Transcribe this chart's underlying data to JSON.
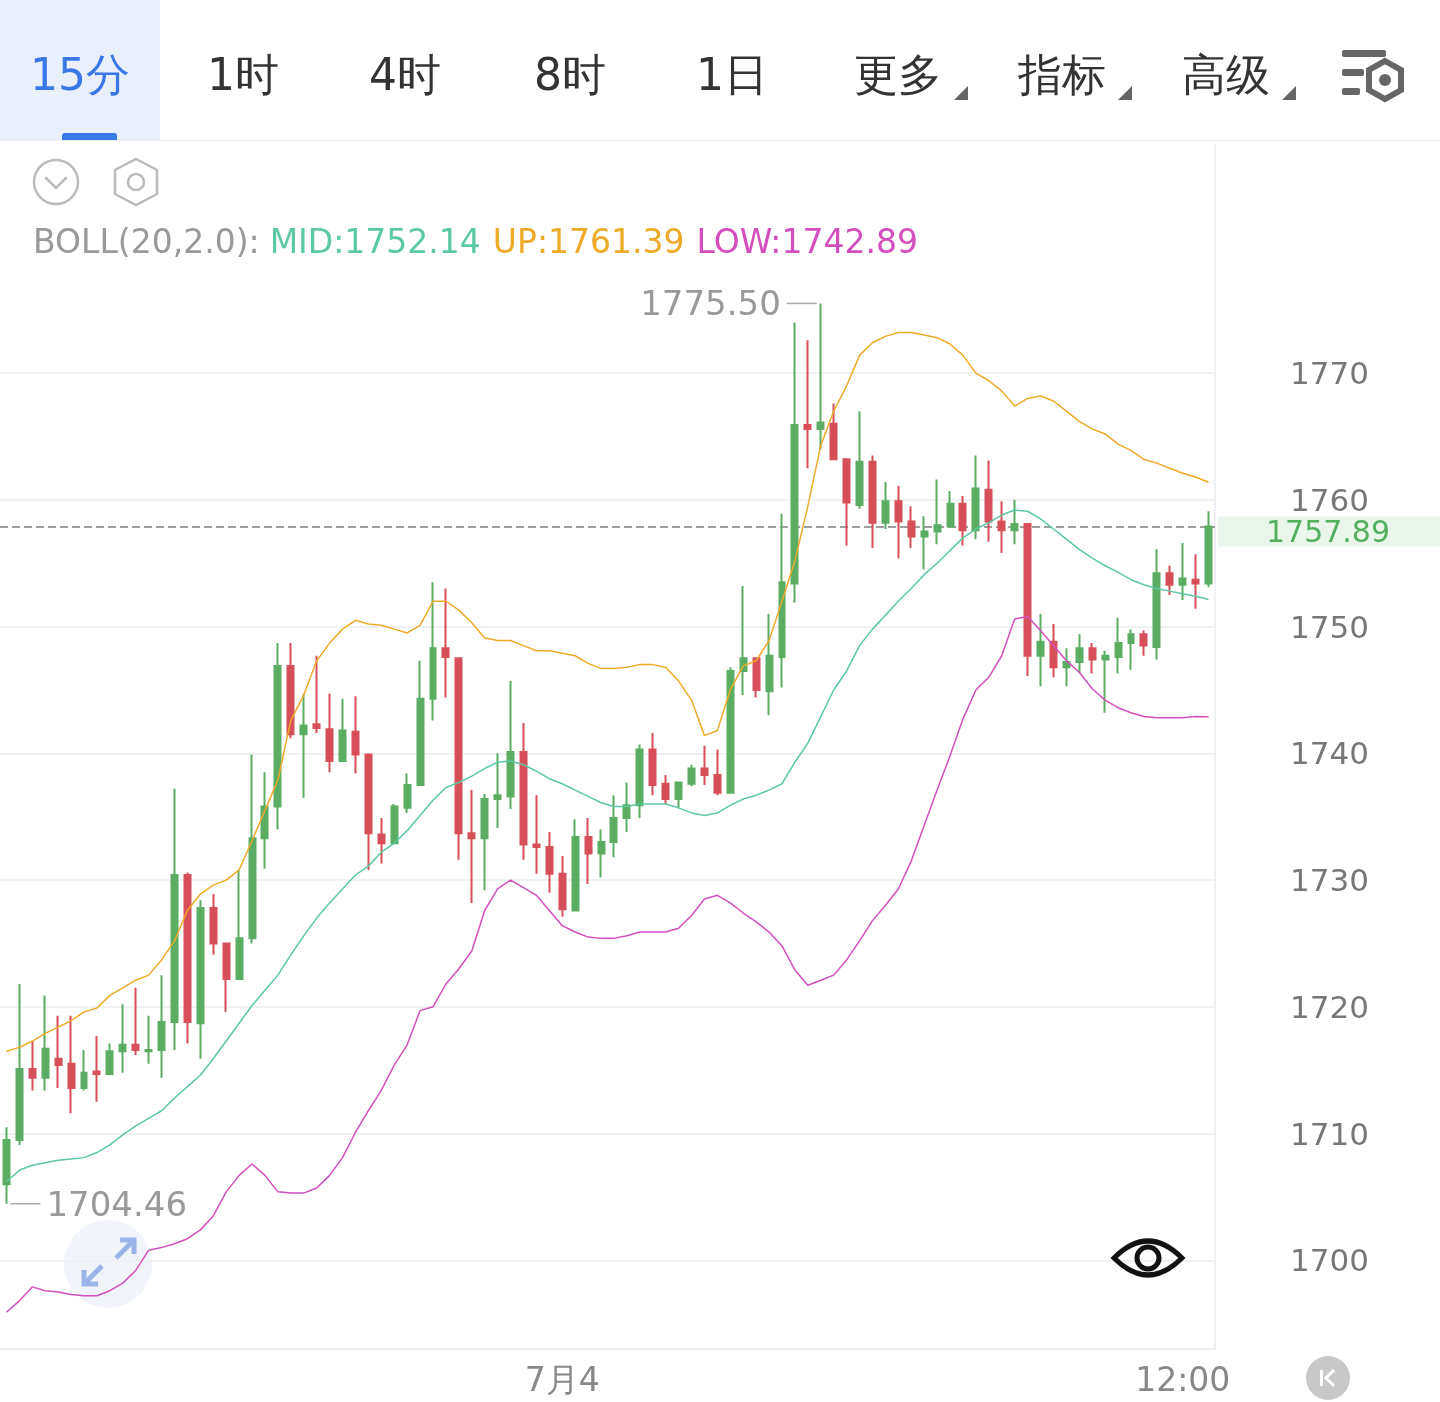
{
  "chart_data": {
    "type": "candlestick",
    "annotations": [
      "15分",
      "1时",
      "4时",
      "8时",
      "1日",
      "更多",
      "指标",
      "高级",
      "1775.50",
      "1704.46"
    ],
    "legend_title": "BOLL(20,2.0):",
    "legend": "top",
    "grid": "y",
    "marker": "none",
    "categories": [
      null,
      null,
      null,
      null,
      null,
      null,
      null,
      null,
      null,
      null,
      null,
      null,
      null,
      null,
      null,
      null,
      null,
      null,
      null,
      null,
      null,
      null,
      null,
      null,
      null,
      null,
      null,
      null,
      null,
      null,
      null,
      null,
      null,
      null,
      null,
      null,
      null,
      null,
      null,
      null,
      null,
      null,
      null,
      "7月4",
      null,
      null,
      null,
      null,
      null,
      null,
      null,
      null,
      null,
      null,
      null,
      null,
      null,
      null,
      null,
      null,
      null,
      null,
      null,
      null,
      null,
      null,
      null,
      null,
      null,
      null,
      null,
      null,
      null,
      null,
      null,
      null,
      null,
      null,
      null,
      null,
      null,
      null,
      null,
      null,
      null,
      null,
      null,
      null,
      null,
      null,
      null,
      "12:00",
      null,
      null
    ],
    "ohlc": [
      [
        1706.0,
        1710.5,
        1704.46,
        1709.5
      ],
      [
        1709.5,
        1721.8,
        1709.1,
        1715.1
      ],
      [
        1715.1,
        1717.3,
        1713.4,
        1714.4
      ],
      [
        1714.4,
        1720.9,
        1713.4,
        1716.7
      ],
      [
        1715.9,
        1719.3,
        1713.6,
        1715.4
      ],
      [
        1715.5,
        1719.3,
        1711.6,
        1713.6
      ],
      [
        1713.6,
        1716.6,
        1713.4,
        1714.8
      ],
      [
        1714.9,
        1717.7,
        1712.5,
        1714.7
      ],
      [
        1714.7,
        1717.1,
        1714.6,
        1716.5
      ],
      [
        1716.5,
        1720.2,
        1714.8,
        1717.0
      ],
      [
        1717.0,
        1721.5,
        1716.2,
        1716.6
      ],
      [
        1716.5,
        1719.3,
        1715.5,
        1716.6
      ],
      [
        1716.6,
        1722.5,
        1714.4,
        1718.8
      ],
      [
        1718.8,
        1737.2,
        1716.6,
        1730.4
      ],
      [
        1730.4,
        1730.6,
        1717.1,
        1718.8
      ],
      [
        1718.7,
        1728.4,
        1715.9,
        1727.8
      ],
      [
        1727.8,
        1728.9,
        1724.1,
        1725.0
      ],
      [
        1725.0,
        1725.0,
        1719.6,
        1722.2
      ],
      [
        1722.2,
        1730.8,
        1722.2,
        1725.4
      ],
      [
        1725.4,
        1739.9,
        1725.0,
        1733.3
      ],
      [
        1733.3,
        1738.5,
        1730.9,
        1735.8
      ],
      [
        1735.8,
        1748.7,
        1734.0,
        1746.9
      ],
      [
        1746.9,
        1748.7,
        1741.2,
        1741.5
      ],
      [
        1741.5,
        1744.7,
        1736.5,
        1742.2
      ],
      [
        1742.3,
        1747.7,
        1741.6,
        1742.0
      ],
      [
        1741.9,
        1744.7,
        1738.5,
        1739.4
      ],
      [
        1739.4,
        1744.3,
        1739.4,
        1741.8
      ],
      [
        1741.7,
        1744.5,
        1738.4,
        1739.9
      ],
      [
        1739.9,
        1739.9,
        1730.8,
        1733.7
      ],
      [
        1733.6,
        1734.9,
        1731.3,
        1732.9
      ],
      [
        1732.9,
        1736.0,
        1732.9,
        1735.8
      ],
      [
        1735.7,
        1738.4,
        1735.3,
        1737.5
      ],
      [
        1737.5,
        1747.3,
        1737.5,
        1744.3
      ],
      [
        1744.3,
        1753.5,
        1742.6,
        1748.3
      ],
      [
        1748.3,
        1753.0,
        1744.4,
        1747.6
      ],
      [
        1747.5,
        1747.5,
        1731.6,
        1733.7
      ],
      [
        1733.7,
        1737.1,
        1728.2,
        1733.3
      ],
      [
        1733.3,
        1736.8,
        1729.2,
        1736.4
      ],
      [
        1736.4,
        1740.0,
        1734.1,
        1736.7
      ],
      [
        1736.6,
        1745.7,
        1735.6,
        1740.1
      ],
      [
        1740.1,
        1742.4,
        1731.6,
        1732.8
      ],
      [
        1732.8,
        1736.7,
        1730.5,
        1732.6
      ],
      [
        1732.6,
        1733.8,
        1729.0,
        1730.5
      ],
      [
        1730.5,
        1731.9,
        1727.1,
        1727.7
      ],
      [
        1727.6,
        1734.8,
        1727.6,
        1733.4
      ],
      [
        1733.4,
        1734.9,
        1729.7,
        1732.1
      ],
      [
        1732.1,
        1734.0,
        1730.2,
        1733.0
      ],
      [
        1733.0,
        1736.7,
        1731.8,
        1734.9
      ],
      [
        1734.9,
        1737.7,
        1733.8,
        1735.9
      ],
      [
        1735.9,
        1740.7,
        1734.9,
        1740.3
      ],
      [
        1740.3,
        1741.6,
        1736.7,
        1737.5
      ],
      [
        1737.6,
        1738.3,
        1736.0,
        1736.4
      ],
      [
        1736.4,
        1737.7,
        1735.7,
        1737.7
      ],
      [
        1737.6,
        1739.1,
        1737.4,
        1738.8
      ],
      [
        1738.8,
        1740.6,
        1737.5,
        1738.3
      ],
      [
        1738.3,
        1740.3,
        1736.7,
        1736.9
      ],
      [
        1736.9,
        1746.8,
        1736.9,
        1746.5
      ],
      [
        1746.5,
        1753.2,
        1744.6,
        1747.5
      ],
      [
        1747.5,
        1747.5,
        1744.4,
        1745.0
      ],
      [
        1744.9,
        1751.0,
        1743.0,
        1747.7
      ],
      [
        1747.6,
        1758.9,
        1745.2,
        1753.5
      ],
      [
        1753.4,
        1774.0,
        1751.9,
        1765.9
      ],
      [
        1765.9,
        1772.6,
        1762.5,
        1765.6
      ],
      [
        1765.6,
        1775.5,
        1764.0,
        1766.1
      ],
      [
        1766.0,
        1767.6,
        1763.2,
        1763.2
      ],
      [
        1763.2,
        1763.2,
        1756.4,
        1759.8
      ],
      [
        1759.6,
        1767.0,
        1759.3,
        1763.0
      ],
      [
        1763.0,
        1763.5,
        1756.2,
        1758.2
      ],
      [
        1758.2,
        1761.4,
        1757.7,
        1759.9
      ],
      [
        1759.9,
        1761.1,
        1755.4,
        1758.3
      ],
      [
        1758.3,
        1759.5,
        1756.2,
        1757.1
      ],
      [
        1757.1,
        1758.7,
        1754.5,
        1757.5
      ],
      [
        1757.5,
        1761.6,
        1756.5,
        1758.0
      ],
      [
        1757.9,
        1760.7,
        1757.9,
        1759.7
      ],
      [
        1759.7,
        1760.3,
        1756.4,
        1757.6
      ],
      [
        1757.6,
        1763.5,
        1756.9,
        1760.9
      ],
      [
        1760.8,
        1763.1,
        1756.7,
        1758.3
      ],
      [
        1758.3,
        1759.9,
        1755.8,
        1757.6
      ],
      [
        1757.6,
        1760.0,
        1756.5,
        1758.1
      ],
      [
        1758.1,
        1758.1,
        1746.1,
        1747.7
      ],
      [
        1747.7,
        1751.0,
        1745.3,
        1748.8
      ],
      [
        1748.8,
        1750.2,
        1746.0,
        1746.8
      ],
      [
        1746.8,
        1748.3,
        1745.3,
        1747.2
      ],
      [
        1747.2,
        1749.4,
        1746.3,
        1748.3
      ],
      [
        1748.3,
        1748.7,
        1746.3,
        1747.4
      ],
      [
        1747.4,
        1748.1,
        1743.2,
        1747.7
      ],
      [
        1747.6,
        1750.7,
        1746.3,
        1748.7
      ],
      [
        1748.7,
        1749.8,
        1746.6,
        1749.4
      ],
      [
        1749.4,
        1749.7,
        1747.7,
        1748.5
      ],
      [
        1748.4,
        1756.1,
        1747.4,
        1754.2
      ],
      [
        1754.2,
        1754.8,
        1752.5,
        1753.3
      ],
      [
        1753.3,
        1756.6,
        1752.1,
        1753.8
      ],
      [
        1753.7,
        1755.7,
        1751.4,
        1753.4
      ],
      [
        1753.4,
        1759.1,
        1753.1,
        1757.89
      ]
    ],
    "colors": [
      "#5aad62",
      "#5aad62",
      "#d74f58",
      "#5aad62",
      "#d74f58",
      "#d74f58",
      "#5aad62",
      "#d74f58",
      "#5aad62",
      "#5aad62",
      "#d74f58",
      "#5aad62",
      "#5aad62",
      "#5aad62",
      "#d74f58",
      "#5aad62",
      "#d74f58",
      "#d74f58",
      "#5aad62",
      "#5aad62",
      "#5aad62",
      "#5aad62",
      "#d74f58",
      "#5aad62",
      "#d74f58",
      "#d74f58",
      "#5aad62",
      "#d74f58",
      "#d74f58",
      "#d74f58",
      "#5aad62",
      "#5aad62",
      "#5aad62",
      "#5aad62",
      "#d74f58",
      "#d74f58",
      "#d74f58",
      "#5aad62",
      "#5aad62",
      "#5aad62",
      "#d74f58",
      "#d74f58",
      "#d74f58",
      "#d74f58",
      "#5aad62",
      "#d74f58",
      "#5aad62",
      "#5aad62",
      "#5aad62",
      "#5aad62",
      "#d74f58",
      "#d74f58",
      "#5aad62",
      "#5aad62",
      "#d74f58",
      "#d74f58",
      "#5aad62",
      "#5aad62",
      "#d74f58",
      "#5aad62",
      "#5aad62",
      "#5aad62",
      "#d74f58",
      "#5aad62",
      "#d74f58",
      "#d74f58",
      "#5aad62",
      "#d74f58",
      "#5aad62",
      "#d74f58",
      "#d74f58",
      "#5aad62",
      "#5aad62",
      "#5aad62",
      "#d74f58",
      "#5aad62",
      "#d74f58",
      "#d74f58",
      "#5aad62",
      "#d74f58",
      "#5aad62",
      "#d74f58",
      "#5aad62",
      "#5aad62",
      "#d74f58",
      "#5aad62",
      "#5aad62",
      "#5aad62",
      "#d74f58",
      "#5aad62",
      "#d74f58",
      "#5aad62",
      "#d74f58",
      "#5aad62"
    ],
    "series": [
      {
        "type": "line",
        "name": "MID:1752.14",
        "color": "#5cc8a6",
        "values": [
          1706.2,
          1707.1,
          1707.5,
          1707.7,
          1707.9,
          1708.0,
          1708.1,
          1708.5,
          1709.1,
          1709.9,
          1710.6,
          1711.2,
          1711.8,
          1712.8,
          1713.7,
          1714.6,
          1715.9,
          1717.3,
          1718.7,
          1720.1,
          1721.3,
          1722.5,
          1724.1,
          1725.6,
          1727.0,
          1728.2,
          1729.3,
          1730.4,
          1731.1,
          1732.2,
          1732.9,
          1733.9,
          1735.1,
          1736.3,
          1737.3,
          1737.7,
          1738.2,
          1738.8,
          1739.3,
          1739.4,
          1739.1,
          1738.6,
          1738.0,
          1737.6,
          1737.1,
          1736.6,
          1736.1,
          1735.8,
          1735.8,
          1736.0,
          1736.0,
          1736.0,
          1735.7,
          1735.3,
          1735.1,
          1735.3,
          1735.9,
          1736.4,
          1736.7,
          1737.1,
          1737.6,
          1739.3,
          1740.8,
          1742.9,
          1745.0,
          1746.5,
          1748.5,
          1749.8,
          1750.9,
          1752.0,
          1753.0,
          1754.1,
          1755.0,
          1756.0,
          1757.0,
          1757.7,
          1758.2,
          1758.8,
          1759.2,
          1759.1,
          1758.5,
          1757.7,
          1756.9,
          1756.1,
          1755.4,
          1754.8,
          1754.3,
          1753.7,
          1753.3,
          1753.0,
          1752.8,
          1752.6,
          1752.4,
          1752.14
        ]
      },
      {
        "type": "line",
        "name": "UP:1761.39",
        "color": "#efaa2a",
        "values": [
          1716.5,
          1716.8,
          1717.3,
          1717.9,
          1718.4,
          1718.9,
          1719.6,
          1719.9,
          1720.9,
          1721.5,
          1722.1,
          1722.5,
          1723.7,
          1725.2,
          1727.6,
          1728.9,
          1729.6,
          1730.0,
          1730.8,
          1733.1,
          1735.5,
          1737.9,
          1742.6,
          1744.6,
          1747.3,
          1748.7,
          1749.8,
          1750.5,
          1750.2,
          1750.1,
          1749.8,
          1749.5,
          1750.1,
          1752.0,
          1752.0,
          1751.3,
          1750.3,
          1749.1,
          1748.9,
          1748.9,
          1748.5,
          1748.1,
          1748.1,
          1747.9,
          1747.7,
          1747.1,
          1746.7,
          1746.7,
          1746.8,
          1747.0,
          1747.0,
          1746.8,
          1745.7,
          1744.2,
          1741.4,
          1741.8,
          1745.0,
          1746.9,
          1747.3,
          1748.9,
          1752.0,
          1755.2,
          1759.5,
          1764.3,
          1767.0,
          1769.0,
          1771.4,
          1772.4,
          1772.9,
          1773.2,
          1773.2,
          1773.0,
          1772.8,
          1772.3,
          1771.4,
          1770.0,
          1769.4,
          1768.6,
          1767.4,
          1768.0,
          1768.2,
          1767.8,
          1767.0,
          1766.2,
          1765.6,
          1765.2,
          1764.4,
          1763.9,
          1763.2,
          1762.9,
          1762.5,
          1762.1,
          1761.8,
          1761.39
        ]
      },
      {
        "type": "line",
        "name": "LOW:1742.89",
        "color": "#d34fbe",
        "values": [
          1695.9,
          1696.8,
          1697.9,
          1697.6,
          1697.5,
          1697.3,
          1697.2,
          1697.2,
          1697.6,
          1698.2,
          1699.2,
          1700.8,
          1701.0,
          1701.3,
          1701.7,
          1702.4,
          1703.5,
          1705.4,
          1706.7,
          1707.6,
          1706.7,
          1705.4,
          1705.3,
          1705.3,
          1705.7,
          1706.7,
          1708.1,
          1710.1,
          1711.8,
          1713.4,
          1715.4,
          1717.0,
          1719.7,
          1720.0,
          1721.8,
          1723.0,
          1724.4,
          1727.6,
          1729.3,
          1730.0,
          1729.4,
          1728.8,
          1727.6,
          1726.4,
          1725.9,
          1725.5,
          1725.4,
          1725.4,
          1725.6,
          1725.9,
          1725.9,
          1725.9,
          1726.2,
          1727.2,
          1728.5,
          1728.8,
          1728.2,
          1727.4,
          1726.7,
          1725.9,
          1724.8,
          1722.9,
          1721.7,
          1722.1,
          1722.5,
          1723.7,
          1725.2,
          1726.8,
          1728.0,
          1729.3,
          1731.5,
          1734.3,
          1737.1,
          1739.8,
          1742.7,
          1745.0,
          1746.0,
          1747.7,
          1750.6,
          1750.8,
          1749.7,
          1748.5,
          1747.3,
          1746.4,
          1745.1,
          1744.2,
          1743.6,
          1743.2,
          1742.9,
          1742.8,
          1742.8,
          1742.8,
          1742.9,
          1742.89
        ]
      }
    ],
    "ylim": [
      1693,
      1788
    ],
    "yticks": [
      1700,
      1710,
      1720,
      1730,
      1740,
      1750,
      1760,
      1770
    ],
    "ref_lines": [
      {
        "axis": "y",
        "value": 1757.89,
        "label": "1757.89",
        "color": "#9e9e9e",
        "line_style": "dashed"
      }
    ]
  }
}
